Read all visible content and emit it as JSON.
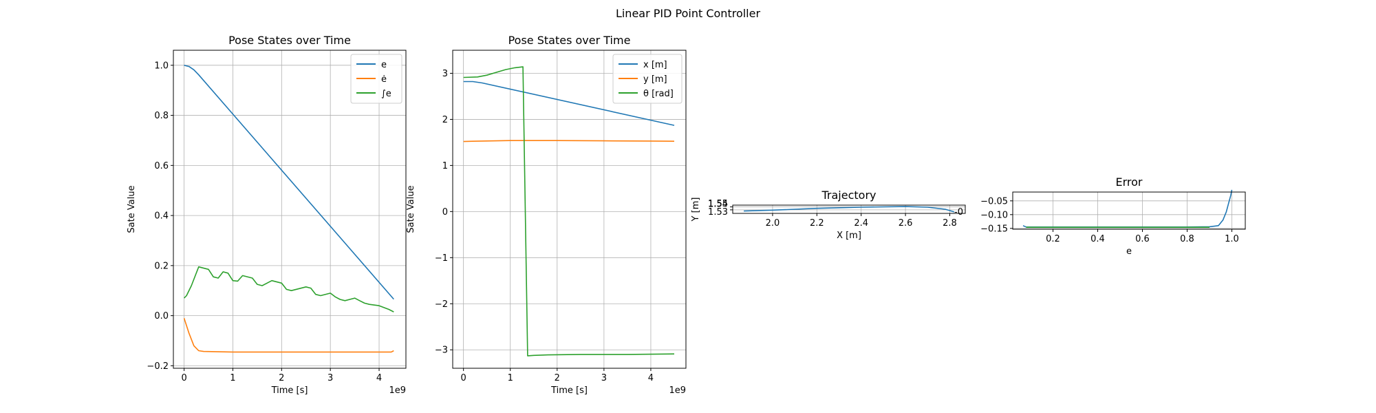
{
  "figure": {
    "suptitle": "Linear PID Point Controller"
  },
  "chart_data": [
    {
      "type": "line",
      "title": "Pose States over Time",
      "xlabel": "Time [s]",
      "ylabel": "Sate Value",
      "offset_text": "1e9",
      "grid": true,
      "legend": "top-right",
      "xlim": [
        -0.22,
        4.55
      ],
      "ylim": [
        -0.21,
        1.06
      ],
      "xticks": [
        0,
        1,
        2,
        3,
        4
      ],
      "xtick_labels": [
        "0",
        "1",
        "2",
        "3",
        "4"
      ],
      "yticks": [
        -0.2,
        0.0,
        0.2,
        0.4,
        0.6,
        0.8,
        1.0
      ],
      "ytick_labels": [
        "−0.2",
        "0.0",
        "0.2",
        "0.4",
        "0.6",
        "0.8",
        "1.0"
      ],
      "series": [
        {
          "name": "e",
          "color": "#1f77b4",
          "x": [
            0,
            0.1,
            0.2,
            0.3,
            4.3
          ],
          "y": [
            1.0,
            0.995,
            0.982,
            0.962,
            0.066
          ]
        },
        {
          "name": "ė",
          "color": "#ff7f0e",
          "x": [
            0,
            0.1,
            0.2,
            0.3,
            0.4,
            1.0,
            2.0,
            3.0,
            4.0,
            4.25,
            4.3
          ],
          "y": [
            -0.01,
            -0.07,
            -0.12,
            -0.14,
            -0.143,
            -0.145,
            -0.145,
            -0.145,
            -0.145,
            -0.145,
            -0.14
          ]
        },
        {
          "name": "∫e",
          "color": "#2ca02c",
          "x": [
            0,
            0.05,
            0.15,
            0.3,
            0.5,
            0.6,
            0.7,
            0.8,
            0.9,
            1.0,
            1.1,
            1.2,
            1.4,
            1.5,
            1.6,
            1.8,
            2.0,
            2.1,
            2.2,
            2.5,
            2.6,
            2.7,
            2.8,
            3.0,
            3.1,
            3.2,
            3.3,
            3.5,
            3.6,
            3.7,
            3.8,
            4.0,
            4.2,
            4.3
          ],
          "y": [
            0.07,
            0.08,
            0.12,
            0.195,
            0.185,
            0.155,
            0.15,
            0.175,
            0.17,
            0.14,
            0.138,
            0.16,
            0.15,
            0.125,
            0.12,
            0.14,
            0.13,
            0.105,
            0.1,
            0.115,
            0.11,
            0.085,
            0.08,
            0.09,
            0.075,
            0.065,
            0.06,
            0.07,
            0.06,
            0.05,
            0.045,
            0.04,
            0.025,
            0.015
          ]
        }
      ]
    },
    {
      "type": "line",
      "title": "Pose States over Time",
      "xlabel": "Time [s]",
      "ylabel": "Sate Value",
      "offset_text": "1e9",
      "grid": true,
      "legend": "top-right",
      "xlim": [
        -0.23,
        4.75
      ],
      "ylim": [
        -3.4,
        3.5
      ],
      "xticks": [
        0,
        1,
        2,
        3,
        4
      ],
      "xtick_labels": [
        "0",
        "1",
        "2",
        "3",
        "4"
      ],
      "yticks": [
        -3,
        -2,
        -1,
        0,
        1,
        2,
        3
      ],
      "ytick_labels": [
        "−3",
        "−2",
        "−1",
        "0",
        "1",
        "2",
        "3"
      ],
      "series": [
        {
          "name": "x [m]",
          "color": "#1f77b4",
          "x": [
            0,
            0.2,
            0.4,
            4.5
          ],
          "y": [
            2.82,
            2.82,
            2.79,
            1.87
          ]
        },
        {
          "name": "y [m]",
          "color": "#ff7f0e",
          "x": [
            0,
            0.2,
            1.0,
            2.0,
            3.0,
            4.0,
            4.5
          ],
          "y": [
            1.52,
            1.525,
            1.54,
            1.54,
            1.535,
            1.53,
            1.525
          ]
        },
        {
          "name": "θ [rad]",
          "color": "#2ca02c",
          "x": [
            0,
            0.3,
            0.5,
            0.7,
            0.9,
            1.1,
            1.27,
            1.37,
            1.5,
            1.8,
            2.5,
            3.5,
            4.5
          ],
          "y": [
            2.91,
            2.92,
            2.96,
            3.02,
            3.08,
            3.12,
            3.14,
            -3.13,
            -3.12,
            -3.11,
            -3.1,
            -3.1,
            -3.09
          ]
        }
      ]
    },
    {
      "type": "line",
      "title": "Trajectory",
      "xlabel": "X [m]",
      "ylabel": "Y [m]",
      "grid": true,
      "xlim": [
        1.82,
        2.87
      ],
      "ylim": [
        1.518,
        1.546
      ],
      "xticks": [
        2.0,
        2.2,
        2.4,
        2.6,
        2.8
      ],
      "xtick_labels": [
        "2.0",
        "2.2",
        "2.4",
        "2.6",
        "2.8"
      ],
      "yticks": [
        1.53,
        1.54
      ],
      "ytick_labels": [
        "1.53",
        "1.54"
      ],
      "extra_ytick_label": "1.55",
      "right_marker": "-0",
      "series": [
        {
          "color": "#1f77b4",
          "x": [
            1.87,
            2.0,
            2.2,
            2.4,
            2.6,
            2.7,
            2.78,
            2.82
          ],
          "y": [
            1.526,
            1.529,
            1.535,
            1.539,
            1.541,
            1.539,
            1.532,
            1.523
          ]
        }
      ]
    },
    {
      "type": "line",
      "title": "Error",
      "xlabel": "e",
      "grid": true,
      "xlim": [
        0.02,
        1.06
      ],
      "ylim": [
        -0.153,
        -0.018
      ],
      "xticks": [
        0.2,
        0.4,
        0.6,
        0.8,
        1.0
      ],
      "xtick_labels": [
        "0.2",
        "0.4",
        "0.6",
        "0.8",
        "1.0"
      ],
      "yticks": [
        -0.15,
        -0.1,
        -0.05
      ],
      "ytick_labels": [
        "−0.15",
        "−0.10",
        "−0.05"
      ],
      "series": [
        {
          "color": "#1f77b4",
          "x": [
            0.066,
            0.08,
            0.2,
            0.5,
            0.8,
            0.9,
            0.94,
            0.96,
            0.975,
            0.985,
            0.995,
            1.0
          ],
          "y": [
            -0.14,
            -0.145,
            -0.145,
            -0.145,
            -0.145,
            -0.144,
            -0.14,
            -0.12,
            -0.09,
            -0.06,
            -0.03,
            -0.01
          ]
        },
        {
          "color": "#2ca02c",
          "x": [
            0.08,
            0.3,
            0.5,
            0.7,
            0.9
          ],
          "y": [
            -0.146,
            -0.146,
            -0.146,
            -0.146,
            -0.146
          ]
        }
      ]
    }
  ]
}
